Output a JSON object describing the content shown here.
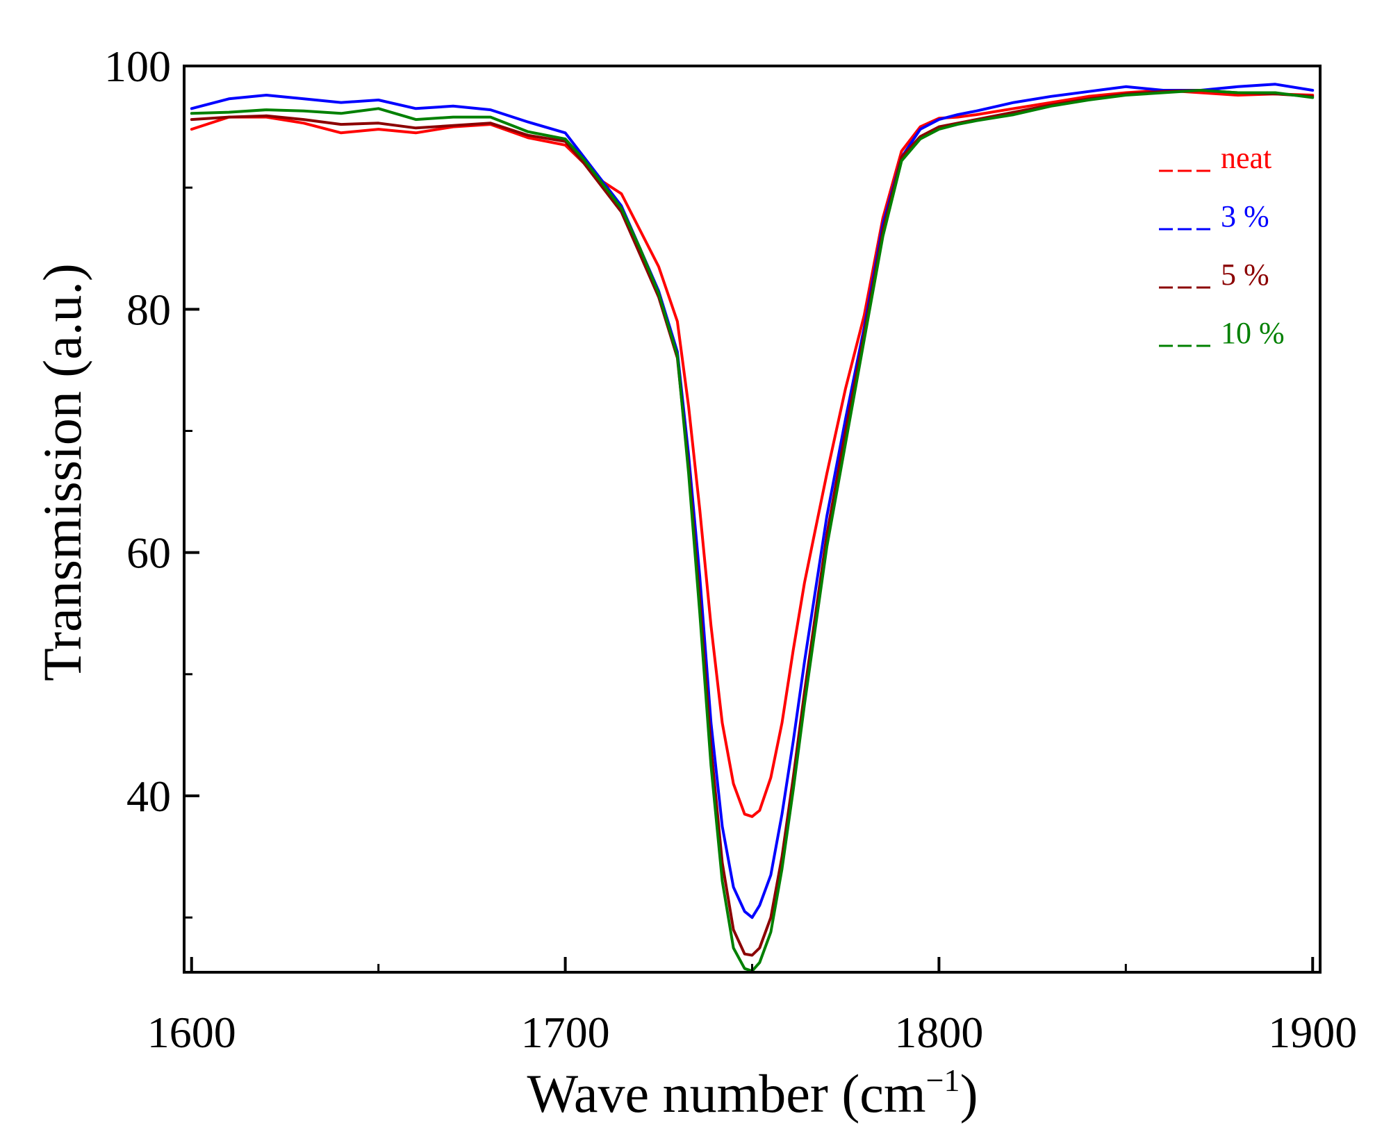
{
  "chart_data": {
    "type": "line",
    "title": "",
    "xlabel": "Wave number (cm",
    "xlabel_sup": "−1",
    "xlabel_close": ")",
    "ylabel": "Transmission (a.u.)",
    "xlim": [
      1598,
      1902
    ],
    "ylim": [
      25.5,
      100
    ],
    "x_ticks": [
      1600,
      1700,
      1800,
      1900
    ],
    "x_tick_labels": [
      "1600",
      "1700",
      "1800",
      "1900"
    ],
    "x_minor_ticks": [
      1650,
      1750,
      1850
    ],
    "y_ticks": [
      40,
      80,
      100
    ],
    "y_tick_labels": [
      "40",
      "80",
      "100"
    ],
    "y_label_60": "60",
    "y_minor_ticks": [
      30,
      50,
      70,
      90
    ],
    "grid": false,
    "legend_position": "top-right",
    "x": [
      1600,
      1610,
      1620,
      1630,
      1640,
      1650,
      1660,
      1670,
      1680,
      1690,
      1700,
      1705,
      1710,
      1715,
      1720,
      1725,
      1730,
      1733,
      1736,
      1739,
      1742,
      1745,
      1748,
      1750,
      1752,
      1755,
      1758,
      1761,
      1764,
      1767,
      1770,
      1775,
      1780,
      1785,
      1790,
      1795,
      1800,
      1805,
      1810,
      1820,
      1830,
      1840,
      1850,
      1860,
      1870,
      1880,
      1890,
      1900
    ],
    "series": [
      {
        "name": "neat",
        "color": "#ff0000",
        "values": [
          94.8,
          95.8,
          95.8,
          95.3,
          94.5,
          94.8,
          94.5,
          95.0,
          95.2,
          94.1,
          93.5,
          92.0,
          90.5,
          89.5,
          86.5,
          83.5,
          79.0,
          72.0,
          63.5,
          54.0,
          46.0,
          41.0,
          38.5,
          38.3,
          38.8,
          41.5,
          46.0,
          52.0,
          57.5,
          62.0,
          66.5,
          73.5,
          79.5,
          87.5,
          93.0,
          95.0,
          95.7,
          95.8,
          96.0,
          96.5,
          97.0,
          97.5,
          97.8,
          98.0,
          97.8,
          97.6,
          97.7,
          97.6
        ]
      },
      {
        "name": "3 %",
        "color": "#0000ff",
        "values": [
          96.5,
          97.3,
          97.6,
          97.3,
          97.0,
          97.2,
          96.5,
          96.7,
          96.4,
          95.4,
          94.5,
          92.5,
          90.5,
          88.5,
          85.0,
          81.5,
          76.5,
          68.0,
          58.0,
          46.0,
          37.5,
          32.5,
          30.5,
          30.0,
          31.0,
          33.5,
          38.5,
          44.5,
          51.0,
          57.0,
          63.0,
          71.0,
          78.5,
          87.0,
          92.5,
          94.8,
          95.6,
          96.0,
          96.3,
          97.0,
          97.5,
          97.9,
          98.3,
          98.0,
          98.0,
          98.3,
          98.5,
          98.0
        ]
      },
      {
        "name": "5 %",
        "color": "#8b0000",
        "values": [
          95.6,
          95.8,
          95.9,
          95.6,
          95.2,
          95.3,
          94.9,
          95.1,
          95.3,
          94.3,
          93.8,
          92.0,
          90.0,
          88.0,
          84.5,
          81.0,
          76.0,
          67.0,
          56.0,
          44.0,
          34.5,
          29.0,
          27.0,
          26.9,
          27.5,
          30.0,
          35.0,
          41.5,
          48.5,
          55.0,
          61.5,
          70.0,
          78.0,
          86.5,
          92.5,
          94.2,
          95.0,
          95.3,
          95.6,
          96.2,
          96.8,
          97.3,
          97.7,
          97.9,
          98.0,
          97.8,
          97.7,
          97.5
        ]
      },
      {
        "name": "10 %",
        "color": "#008000",
        "values": [
          96.1,
          96.2,
          96.4,
          96.3,
          96.1,
          96.5,
          95.6,
          95.8,
          95.8,
          94.6,
          94.0,
          92.3,
          90.3,
          88.3,
          85.0,
          81.3,
          76.2,
          66.5,
          55.0,
          42.5,
          33.0,
          27.5,
          25.8,
          25.6,
          26.3,
          28.8,
          34.0,
          40.5,
          47.5,
          54.0,
          60.5,
          69.0,
          77.5,
          86.0,
          92.2,
          94.0,
          94.8,
          95.2,
          95.5,
          96.0,
          96.7,
          97.2,
          97.6,
          97.8,
          98.0,
          97.8,
          97.8,
          97.4
        ]
      }
    ]
  }
}
